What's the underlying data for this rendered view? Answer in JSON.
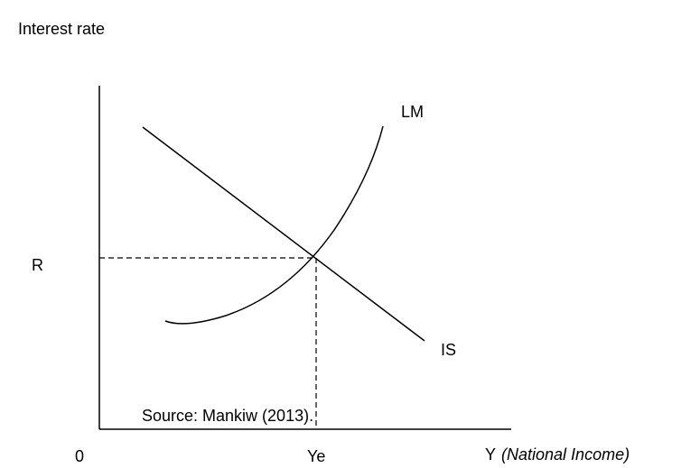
{
  "y_axis_label": "Interest rate",
  "curves": {
    "lm": "LM",
    "is": "IS"
  },
  "equilibrium": {
    "rate": "R",
    "income": "Ye"
  },
  "origin": "0",
  "x_axis_label": {
    "symbol": "Y",
    "description": "(National Income)"
  },
  "source": "Source: Mankiw (2013)."
}
